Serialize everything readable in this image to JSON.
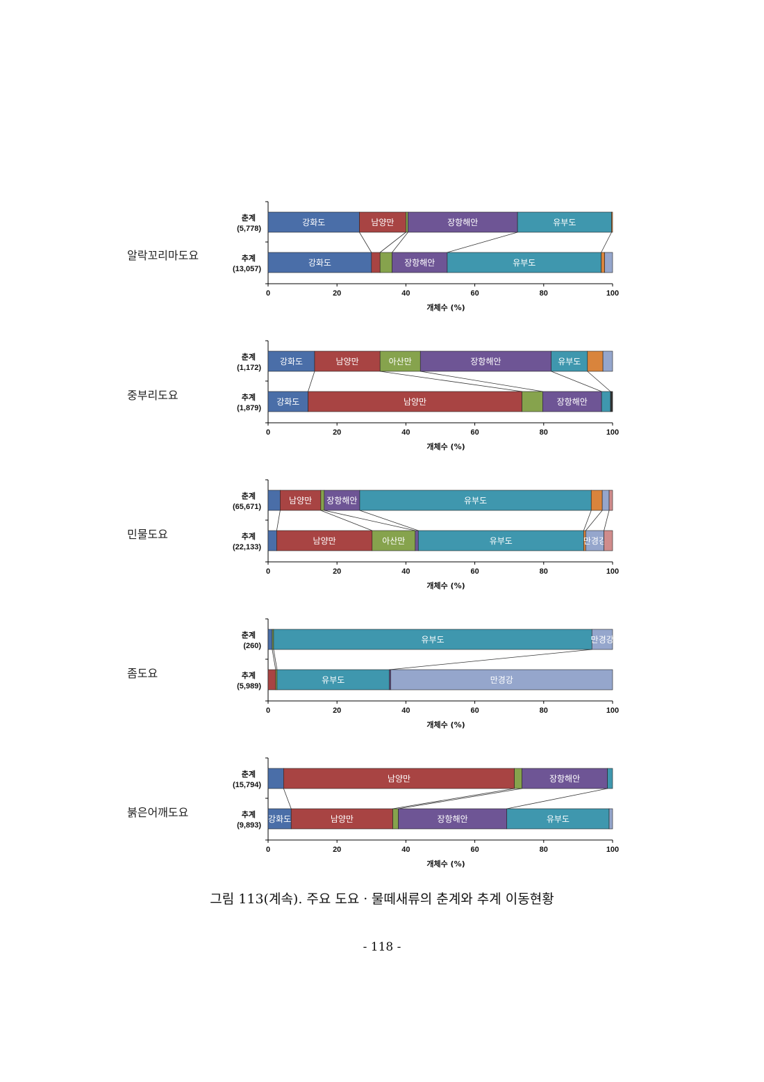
{
  "caption": "그림 113(계속). 주요 도요ㆍ물떼새류의 춘계와 추계 이동현황",
  "page_number": "- 118 -",
  "colors": {
    "강화도": "#4A6EA8",
    "남양만": "#A84443",
    "아산만": "#86A34D",
    "장항해안": "#6E5595",
    "유부도": "#3F97AE",
    "기타_주황": "#D9843C",
    "만경강": "#95A6CC",
    "기타_분홍": "#D08C8C",
    "line": "#333333"
  },
  "chart_data": [
    {
      "type": "bar",
      "orientation": "horizontal",
      "stacked": "percent",
      "species": "알락꼬리마도요",
      "xlabel": "개체수 (%)",
      "xlim": [
        0,
        100
      ],
      "xticks": [
        "0",
        "20",
        "40",
        "60",
        "80",
        "100"
      ],
      "bars": [
        {
          "label": "춘계",
          "total": "(5,778)",
          "segments": [
            {
              "name": "강화도",
              "value": 26.5,
              "color": "#4A6EA8",
              "label": "강화도"
            },
            {
              "name": "남양만",
              "value": 13.5,
              "color": "#A84443",
              "label": "남양만"
            },
            {
              "name": "아산만",
              "value": 0.6,
              "color": "#86A34D"
            },
            {
              "name": "장항해안",
              "value": 31.8,
              "color": "#6E5595",
              "label": "장항해안"
            },
            {
              "name": "유부도",
              "value": 27.3,
              "color": "#3F97AE",
              "label": "유부도"
            },
            {
              "name": "기타",
              "value": 0.3,
              "color": "#D9843C"
            }
          ]
        },
        {
          "label": "추계",
          "total": "(13,057)",
          "segments": [
            {
              "name": "강화도",
              "value": 30.0,
              "color": "#4A6EA8",
              "label": "강화도"
            },
            {
              "name": "남양만",
              "value": 2.5,
              "color": "#A84443"
            },
            {
              "name": "아산만",
              "value": 3.5,
              "color": "#86A34D"
            },
            {
              "name": "장항해안",
              "value": 16.0,
              "color": "#6E5595",
              "label": "장항해안"
            },
            {
              "name": "유부도",
              "value": 44.7,
              "color": "#3F97AE",
              "label": "유부도"
            },
            {
              "name": "기타",
              "value": 1.0,
              "color": "#D9843C"
            },
            {
              "name": "만경강",
              "value": 2.3,
              "color": "#95A6CC"
            }
          ]
        }
      ]
    },
    {
      "type": "bar",
      "orientation": "horizontal",
      "stacked": "percent",
      "species": "중부리도요",
      "xlabel": "개체수 (%)",
      "xlim": [
        0,
        100
      ],
      "xticks": [
        "0",
        "20",
        "40",
        "60",
        "80",
        "100"
      ],
      "bars": [
        {
          "label": "춘계",
          "total": "(1,172)",
          "segments": [
            {
              "name": "강화도",
              "value": 13.5,
              "color": "#4A6EA8",
              "label": "강화도"
            },
            {
              "name": "남양만",
              "value": 19.0,
              "color": "#A84443",
              "label": "남양만"
            },
            {
              "name": "아산만",
              "value": 11.7,
              "color": "#86A34D",
              "label": "아산만"
            },
            {
              "name": "장항해안",
              "value": 38.0,
              "color": "#6E5595",
              "label": "장항해안"
            },
            {
              "name": "유부도",
              "value": 10.5,
              "color": "#3F97AE",
              "label": "유부도"
            },
            {
              "name": "기타",
              "value": 4.5,
              "color": "#D9843C"
            },
            {
              "name": "만경강",
              "value": 2.8,
              "color": "#95A6CC"
            }
          ]
        },
        {
          "label": "추계",
          "total": "(1,879)",
          "segments": [
            {
              "name": "강화도",
              "value": 11.6,
              "color": "#4A6EA8",
              "label": "강화도"
            },
            {
              "name": "남양만",
              "value": 62.1,
              "color": "#A84443",
              "label": "남양만"
            },
            {
              "name": "아산만",
              "value": 6.0,
              "color": "#86A34D"
            },
            {
              "name": "장항해안",
              "value": 17.1,
              "color": "#6E5595",
              "label": "장항해안"
            },
            {
              "name": "유부도",
              "value": 2.6,
              "color": "#3F97AE"
            },
            {
              "name": "기타",
              "value": 0.6,
              "color": "#333333"
            }
          ]
        }
      ]
    },
    {
      "type": "bar",
      "orientation": "horizontal",
      "stacked": "percent",
      "species": "민물도요",
      "xlabel": "개체수 (%)",
      "xlim": [
        0,
        100
      ],
      "xticks": [
        "0",
        "20",
        "40",
        "60",
        "80",
        "100"
      ],
      "bars": [
        {
          "label": "춘계",
          "total": "(65,671)",
          "segments": [
            {
              "name": "강화도",
              "value": 3.5,
              "color": "#4A6EA8"
            },
            {
              "name": "남양만",
              "value": 11.8,
              "color": "#A84443",
              "label": "남양만"
            },
            {
              "name": "아산만",
              "value": 1.0,
              "color": "#86A34D"
            },
            {
              "name": "장항해안",
              "value": 10.3,
              "color": "#6E5595",
              "label": "장항해안"
            },
            {
              "name": "유부도",
              "value": 67.2,
              "color": "#3F97AE",
              "label": "유부도"
            },
            {
              "name": "기타",
              "value": 3.2,
              "color": "#D9843C"
            },
            {
              "name": "만경강",
              "value": 2.0,
              "color": "#95A6CC"
            },
            {
              "name": "기타",
              "value": 1.0,
              "color": "#D08C8C"
            }
          ]
        },
        {
          "label": "추계",
          "total": "(22,133)",
          "segments": [
            {
              "name": "강화도",
              "value": 2.5,
              "color": "#4A6EA8"
            },
            {
              "name": "남양만",
              "value": 27.7,
              "color": "#A84443",
              "label": "남양만"
            },
            {
              "name": "아산만",
              "value": 12.5,
              "color": "#86A34D",
              "label": "아산만"
            },
            {
              "name": "장항해안",
              "value": 0.9,
              "color": "#6E5595"
            },
            {
              "name": "유부도",
              "value": 48.0,
              "color": "#3F97AE",
              "label": "유부도"
            },
            {
              "name": "기타",
              "value": 0.6,
              "color": "#D9843C"
            },
            {
              "name": "만경강",
              "value": 5.3,
              "color": "#95A6CC",
              "label": "만경강"
            },
            {
              "name": "기타",
              "value": 2.5,
              "color": "#D08C8C"
            }
          ]
        }
      ]
    },
    {
      "type": "bar",
      "orientation": "horizontal",
      "stacked": "percent",
      "species": "좀도요",
      "xlabel": "개체수 (%)",
      "xlim": [
        0,
        100
      ],
      "xticks": [
        "0",
        "20",
        "40",
        "60",
        "80",
        "100"
      ],
      "bars": [
        {
          "label": "춘계",
          "total": "(260)",
          "segments": [
            {
              "name": "강화도",
              "value": 1.2,
              "color": "#4A6EA8"
            },
            {
              "name": "아산만",
              "value": 0.4,
              "color": "#86A34D"
            },
            {
              "name": "유부도",
              "value": 92.4,
              "color": "#3F97AE",
              "label": "유부도"
            },
            {
              "name": "만경강",
              "value": 6.0,
              "color": "#95A6CC",
              "label": "만경강"
            }
          ]
        },
        {
          "label": "추계",
          "total": "(5,989)",
          "segments": [
            {
              "name": "남양만",
              "value": 2.2,
              "color": "#A84443"
            },
            {
              "name": "아산만",
              "value": 0.4,
              "color": "#86A34D"
            },
            {
              "name": "유부도",
              "value": 32.6,
              "color": "#3F97AE",
              "label": "유부도"
            },
            {
              "name": "장항해안",
              "value": 0.4,
              "color": "#6E5595"
            },
            {
              "name": "만경강",
              "value": 64.4,
              "color": "#95A6CC",
              "label": "만경강"
            }
          ]
        }
      ]
    },
    {
      "type": "bar",
      "orientation": "horizontal",
      "stacked": "percent",
      "species": "붉은어깨도요",
      "xlabel": "개체수 (%)",
      "xlim": [
        0,
        100
      ],
      "xticks": [
        "0",
        "20",
        "40",
        "60",
        "80",
        "100"
      ],
      "bars": [
        {
          "label": "춘계",
          "total": "(15,794)",
          "segments": [
            {
              "name": "강화도",
              "value": 4.5,
              "color": "#4A6EA8"
            },
            {
              "name": "남양만",
              "value": 67.0,
              "color": "#A84443",
              "label": "남양만"
            },
            {
              "name": "아산만",
              "value": 2.2,
              "color": "#86A34D"
            },
            {
              "name": "장항해안",
              "value": 24.8,
              "color": "#6E5595",
              "label": "장항해안"
            },
            {
              "name": "유부도",
              "value": 1.5,
              "color": "#3F97AE"
            }
          ]
        },
        {
          "label": "추계",
          "total": "(9,893)",
          "segments": [
            {
              "name": "강화도",
              "value": 6.7,
              "color": "#4A6EA8",
              "label": "강화도"
            },
            {
              "name": "남양만",
              "value": 29.5,
              "color": "#A84443",
              "label": "남양만"
            },
            {
              "name": "아산만",
              "value": 1.6,
              "color": "#86A34D"
            },
            {
              "name": "장항해안",
              "value": 31.5,
              "color": "#6E5595",
              "label": "장항해안"
            },
            {
              "name": "유부도",
              "value": 29.7,
              "color": "#3F97AE",
              "label": "유부도"
            },
            {
              "name": "만경강",
              "value": 1.0,
              "color": "#95A6CC"
            }
          ]
        }
      ]
    }
  ]
}
